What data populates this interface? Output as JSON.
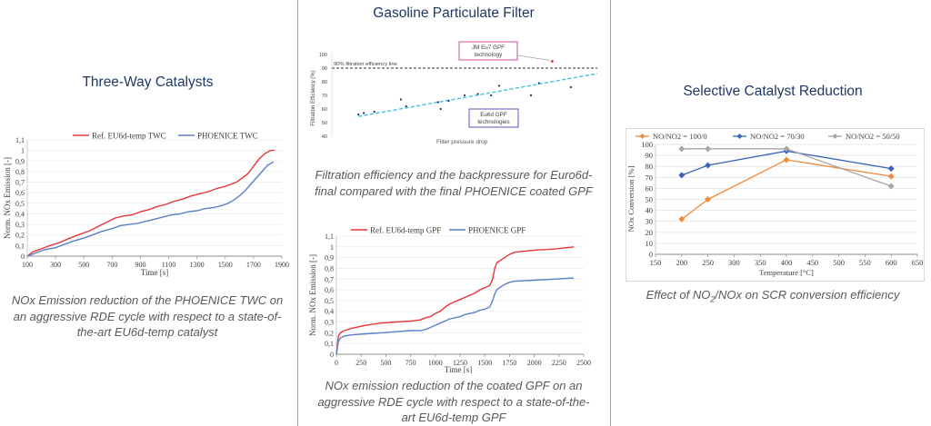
{
  "panels": {
    "twc": {
      "title": "Three-Way Catalysts",
      "caption_lines": [
        "NOx Emission reduction of the PHOENICE TWC on",
        "an aggressive RDE cycle with respect to a state-of-",
        "the-art EU6d-temp catalyst"
      ]
    },
    "gpf": {
      "title": "Gasoline Particulate Filter",
      "caption1_lines": [
        "Filtration efficiency and the backpressure for Euro6d-",
        "final compared with the final PHOENICE coated GPF"
      ],
      "caption2_lines": [
        "NOx emission reduction of the coated GPF on an",
        "aggressive RDE cycle with respect to a state-of-the-",
        "art EU6d-temp GPF"
      ]
    },
    "scr": {
      "title": "Selective Catalyst Reduction",
      "caption_pre": "Effect of NO",
      "caption_sub": "2",
      "caption_post": "/NOx on SCR conversion efficiency"
    }
  },
  "chart_data": [
    {
      "id": "twc",
      "type": "line",
      "xlabel": "Time [s]",
      "ylabel": "Norm. NOx Emission  [-]",
      "xlim": [
        100,
        1900
      ],
      "ylim": [
        0,
        1.1
      ],
      "x_ticks": [
        "100",
        "300",
        "500",
        "700",
        "900",
        "1100",
        "1300",
        "1500",
        "1700",
        "1900"
      ],
      "y_ticks": [
        "0",
        "0,1",
        "0,2",
        "0,3",
        "0,4",
        "0,5",
        "0,6",
        "0,7",
        "0,8",
        "0,9",
        "1",
        "1,1"
      ],
      "series": [
        {
          "name": "Ref. EU6d-temp TWC",
          "color": "#e8353a",
          "x": [
            100,
            140,
            200,
            260,
            330,
            400,
            460,
            540,
            600,
            660,
            720,
            780,
            840,
            900,
            960,
            1020,
            1080,
            1140,
            1200,
            1260,
            1320,
            1380,
            1440,
            1500,
            1540,
            1580,
            1620,
            1660,
            1700,
            1740,
            1780,
            1820,
            1850
          ],
          "y": [
            0,
            0.04,
            0.07,
            0.1,
            0.13,
            0.17,
            0.2,
            0.24,
            0.28,
            0.32,
            0.36,
            0.38,
            0.39,
            0.42,
            0.44,
            0.47,
            0.49,
            0.52,
            0.54,
            0.57,
            0.59,
            0.61,
            0.64,
            0.66,
            0.68,
            0.7,
            0.74,
            0.78,
            0.85,
            0.92,
            0.97,
            1.0,
            1.0
          ]
        },
        {
          "name": "PHOENICE TWC",
          "color": "#5b7fc7",
          "x": [
            100,
            160,
            220,
            300,
            360,
            420,
            500,
            560,
            620,
            700,
            760,
            820,
            880,
            940,
            1000,
            1060,
            1120,
            1180,
            1240,
            1300,
            1360,
            1420,
            1480,
            1520,
            1560,
            1600,
            1640,
            1680,
            1720,
            1760,
            1800,
            1840
          ],
          "y": [
            0,
            0.03,
            0.06,
            0.08,
            0.11,
            0.14,
            0.17,
            0.2,
            0.23,
            0.26,
            0.29,
            0.3,
            0.31,
            0.33,
            0.35,
            0.37,
            0.39,
            0.4,
            0.42,
            0.43,
            0.45,
            0.46,
            0.48,
            0.5,
            0.53,
            0.57,
            0.62,
            0.68,
            0.74,
            0.8,
            0.86,
            0.89
          ]
        }
      ]
    },
    {
      "id": "gpf_scatter",
      "type": "scatter",
      "xlabel": "Filter pressure drop",
      "ylabel": "Filtration Efficiency (%)",
      "ylim": [
        40,
        100
      ],
      "y_ticks": [
        "40",
        "50",
        "60",
        "70",
        "80",
        "90",
        "100"
      ],
      "reference_line": {
        "label": "90% filtration efficiency line",
        "y": 90
      },
      "annotations": [
        {
          "id": "jm",
          "label_lines": [
            "JM Eu7 GPF",
            "technology"
          ],
          "color": "#d1489a"
        },
        {
          "id": "eu6d",
          "label_lines": [
            "Eu6d GPF",
            "technologies"
          ],
          "color": "#6a4ec0"
        }
      ],
      "series": [
        {
          "name": "Eu6d GPF technologies",
          "color": "#1f2e6e",
          "x": [
            0.1,
            0.12,
            0.16,
            0.26,
            0.28,
            0.4,
            0.41,
            0.44,
            0.5,
            0.55,
            0.6,
            0.63,
            0.75,
            0.78,
            0.9
          ],
          "y": [
            56,
            57,
            58,
            67,
            62,
            65,
            60,
            66,
            70,
            71,
            70,
            77,
            70,
            79,
            76
          ]
        },
        {
          "name": "JM Eu7 GPF technology",
          "color": "#c0392b",
          "x": [
            0.83
          ],
          "y": [
            95
          ]
        }
      ],
      "trendline": {
        "color": "#3fc1df",
        "x": [
          0.1,
          1.0
        ],
        "y": [
          54.5,
          86
        ]
      }
    },
    {
      "id": "gpf_rde",
      "type": "line",
      "xlabel": "Time [s]",
      "ylabel": "Norm. NOx Emission  [-]",
      "xlim": [
        0,
        2500
      ],
      "ylim": [
        0,
        1.1
      ],
      "x_ticks": [
        "0",
        "250",
        "500",
        "750",
        "1000",
        "1250",
        "1500",
        "1750",
        "2000",
        "2250",
        "2500"
      ],
      "y_ticks": [
        "0",
        "0,1",
        "0,2",
        "0,3",
        "0,4",
        "0,5",
        "0,6",
        "0,7",
        "0,8",
        "0,9",
        "1",
        "1,1"
      ],
      "series": [
        {
          "name": "Ref. EU6d-temp GPF",
          "color": "#e8353a",
          "x": [
            0,
            20,
            40,
            80,
            150,
            300,
            450,
            600,
            750,
            850,
            900,
            950,
            1000,
            1050,
            1100,
            1150,
            1200,
            1250,
            1300,
            1350,
            1400,
            1450,
            1500,
            1550,
            1580,
            1600,
            1620,
            1650,
            1700,
            1750,
            1800,
            2000,
            2200,
            2400
          ],
          "y": [
            0,
            0.17,
            0.2,
            0.22,
            0.24,
            0.27,
            0.29,
            0.3,
            0.31,
            0.32,
            0.34,
            0.35,
            0.38,
            0.4,
            0.44,
            0.47,
            0.49,
            0.51,
            0.53,
            0.55,
            0.57,
            0.6,
            0.62,
            0.64,
            0.7,
            0.8,
            0.85,
            0.87,
            0.9,
            0.93,
            0.95,
            0.97,
            0.98,
            1.0
          ]
        },
        {
          "name": "PHOENICE GPF",
          "color": "#5b7fc7",
          "x": [
            0,
            20,
            40,
            80,
            150,
            300,
            450,
            600,
            750,
            850,
            900,
            950,
            1000,
            1050,
            1100,
            1150,
            1200,
            1250,
            1300,
            1350,
            1400,
            1450,
            1500,
            1550,
            1580,
            1600,
            1620,
            1650,
            1700,
            1750,
            1800,
            2000,
            2200,
            2400
          ],
          "y": [
            0,
            0.12,
            0.15,
            0.17,
            0.18,
            0.19,
            0.2,
            0.21,
            0.22,
            0.22,
            0.23,
            0.25,
            0.27,
            0.29,
            0.31,
            0.33,
            0.34,
            0.35,
            0.37,
            0.38,
            0.39,
            0.41,
            0.42,
            0.44,
            0.5,
            0.56,
            0.6,
            0.62,
            0.65,
            0.67,
            0.68,
            0.69,
            0.7,
            0.71
          ]
        }
      ]
    },
    {
      "id": "scr",
      "type": "line",
      "xlabel": "Temperature [°C]",
      "ylabel": "NOx Conversion [%]",
      "xlim": [
        150,
        650
      ],
      "ylim": [
        0,
        100
      ],
      "x_ticks": [
        "150",
        "200",
        "250",
        "300",
        "350",
        "400",
        "450",
        "500",
        "550",
        "600",
        "650"
      ],
      "y_ticks": [
        "0",
        "10",
        "20",
        "30",
        "40",
        "50",
        "60",
        "70",
        "80",
        "90",
        "100"
      ],
      "x": [
        200,
        250,
        400,
        600
      ],
      "series": [
        {
          "name": "NO/NO2 = 100/0",
          "color": "#f08a3c",
          "values": [
            32,
            50,
            86,
            71
          ]
        },
        {
          "name": "NO/NO2 = 70/30",
          "color": "#3a63b8",
          "values": [
            72,
            81,
            94,
            78
          ]
        },
        {
          "name": "NO/NO2 = 50/50",
          "color": "#a6a6a6",
          "values": [
            96,
            96,
            96,
            62
          ]
        }
      ]
    }
  ]
}
